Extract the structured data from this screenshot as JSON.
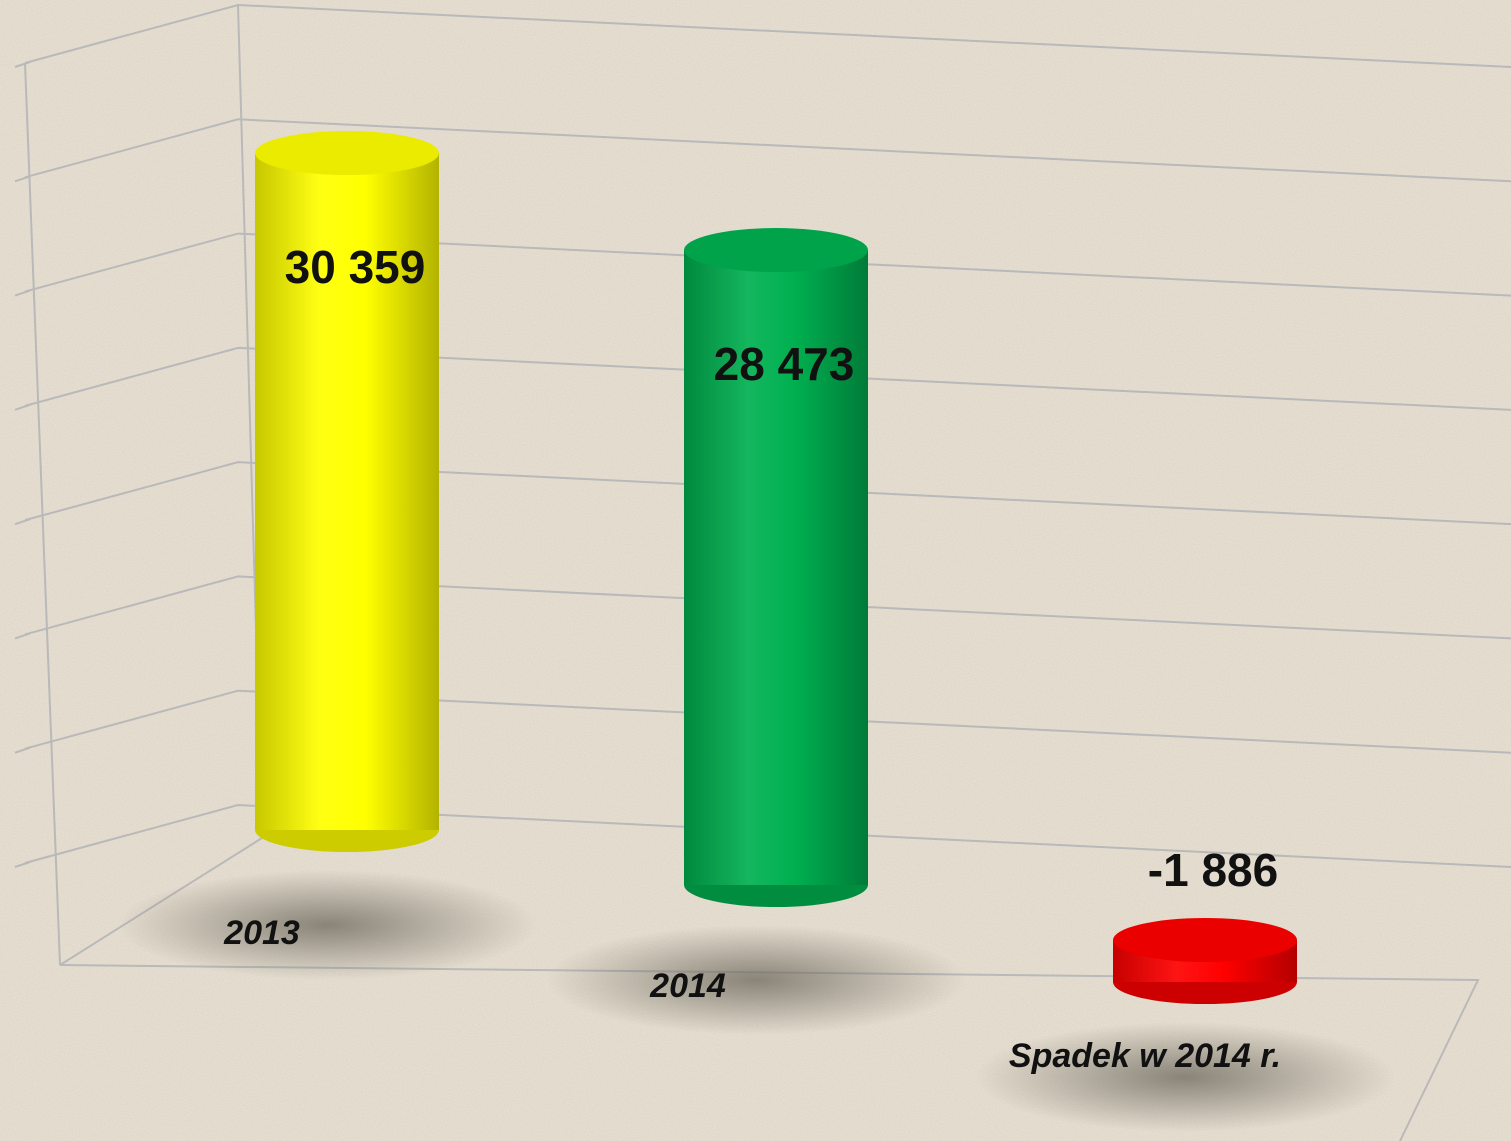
{
  "chart_data": {
    "type": "bar",
    "categories": [
      "2013",
      "2014",
      "Spadek w 2014 r."
    ],
    "values": [
      30359,
      28473,
      -1886
    ],
    "value_labels": [
      "30 359",
      "28 473",
      "-1 886"
    ],
    "colors": [
      "#ffff00",
      "#00b050",
      "#ff0000"
    ],
    "ylim": [
      0,
      35000
    ],
    "yticks": [
      0,
      5000,
      10000,
      15000,
      20000,
      25000,
      30000,
      35000
    ],
    "grid": true
  }
}
